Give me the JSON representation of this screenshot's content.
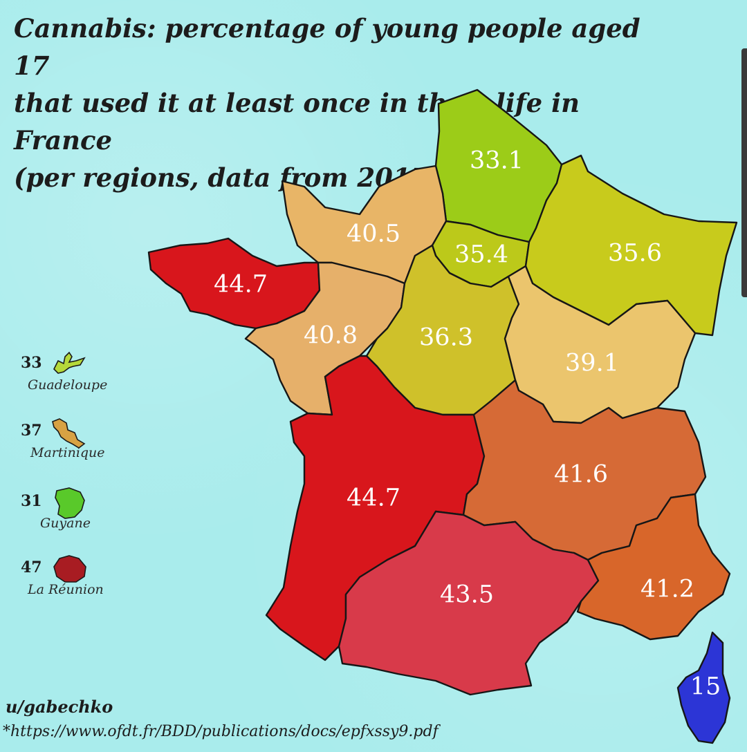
{
  "title": {
    "line1": "Cannabis: percentage of young people aged 17",
    "line2": "that used it at least once in their life in France",
    "line3": "(per regions, data from 2017*)"
  },
  "regions": [
    {
      "id": "hauts-de-france",
      "value": "33.1",
      "color": "#9ccc18"
    },
    {
      "id": "normandie",
      "value": "40.5",
      "color": "#e8b567"
    },
    {
      "id": "ile-de-france",
      "value": "35.4",
      "color": "#bcc91a"
    },
    {
      "id": "grand-est",
      "value": "35.6",
      "color": "#c8cb1c"
    },
    {
      "id": "bretagne",
      "value": "44.7",
      "color": "#d8161c"
    },
    {
      "id": "pays-de-la-loire",
      "value": "40.8",
      "color": "#e6b06a"
    },
    {
      "id": "centre-val-de-loire",
      "value": "36.3",
      "color": "#cfc12a"
    },
    {
      "id": "bourgogne-franche-comte",
      "value": "39.1",
      "color": "#ebc56d"
    },
    {
      "id": "nouvelle-aquitaine",
      "value": "44.7",
      "color": "#d8161c"
    },
    {
      "id": "auvergne-rhone-alpes",
      "value": "41.6",
      "color": "#d66a36"
    },
    {
      "id": "occitanie",
      "value": "43.5",
      "color": "#d83a4a"
    },
    {
      "id": "provence-alpes-cote-dazur",
      "value": "41.2",
      "color": "#d8662a"
    },
    {
      "id": "corse",
      "value": "15",
      "color": "#2c35d6"
    }
  ],
  "overseas": [
    {
      "value": "33",
      "name": "Guadeloupe",
      "color": "#b5d93a"
    },
    {
      "value": "37",
      "name": "Martinique",
      "color": "#d8a243"
    },
    {
      "value": "31",
      "name": "Guyane",
      "color": "#59c92a"
    },
    {
      "value": "47",
      "name": "La Réunion",
      "color": "#a81c22"
    }
  ],
  "author": "u/gabechko",
  "source": "*https://www.ofdt.fr/BDD/publications/docs/epfxssy9.pdf"
}
